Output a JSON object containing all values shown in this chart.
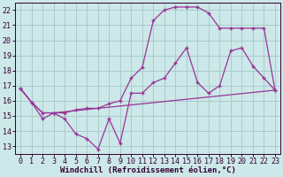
{
  "bg_color": "#cce8e8",
  "grid_color": "#aacccc",
  "line_color": "#993399",
  "xlabel": "Windchill (Refroidissement éolien,°C)",
  "xlabel_fontsize": 6.5,
  "tick_fontsize": 6.0,
  "ylim": [
    12.5,
    22.5
  ],
  "xlim": [
    -0.5,
    23.5
  ],
  "yticks": [
    13,
    14,
    15,
    16,
    17,
    18,
    19,
    20,
    21,
    22
  ],
  "xticks": [
    0,
    1,
    2,
    3,
    4,
    5,
    6,
    7,
    8,
    9,
    10,
    11,
    12,
    13,
    14,
    15,
    16,
    17,
    18,
    19,
    20,
    21,
    22,
    23
  ],
  "line1_x": [
    0,
    1,
    2,
    3,
    4,
    5,
    6,
    7,
    8,
    9,
    10,
    11,
    12,
    13,
    14,
    15,
    16,
    17,
    18,
    19,
    20,
    21,
    22,
    23
  ],
  "line1_y": [
    16.8,
    15.9,
    14.8,
    15.2,
    14.8,
    13.8,
    13.5,
    12.8,
    14.8,
    13.2,
    16.5,
    16.5,
    17.2,
    17.5,
    18.5,
    19.5,
    17.2,
    16.5,
    17.0,
    19.3,
    19.5,
    18.3,
    17.5,
    16.7
  ],
  "line2_x": [
    0,
    1,
    2,
    3,
    23
  ],
  "line2_y": [
    16.8,
    15.9,
    15.2,
    15.2,
    16.7
  ],
  "line3_x": [
    0,
    1,
    2,
    3,
    4,
    5,
    6,
    7,
    8,
    9,
    10,
    11,
    12,
    13,
    14,
    15,
    16,
    17,
    18,
    19,
    20,
    21,
    22,
    23
  ],
  "line3_y": [
    16.8,
    15.9,
    15.2,
    15.2,
    15.2,
    15.4,
    15.5,
    15.5,
    15.8,
    16.0,
    17.5,
    18.2,
    21.3,
    22.0,
    22.2,
    22.2,
    22.2,
    21.8,
    20.8,
    20.8,
    20.8,
    20.8,
    20.8,
    16.7
  ]
}
